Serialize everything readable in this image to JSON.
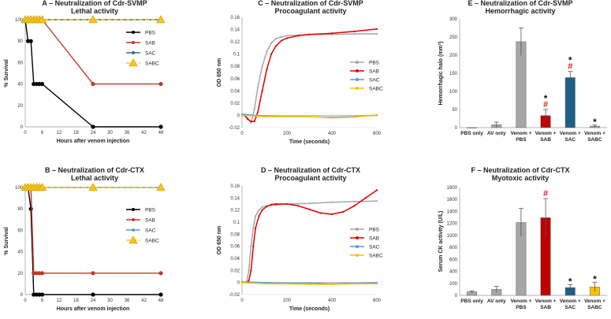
{
  "colors": {
    "PBS_a": "#000000",
    "SAB_a": "#c0392b",
    "SAC_a": "#2d6e8a",
    "SABC_a": "#f5c518",
    "PBS_c": "#a6a6a6",
    "SAB_c": "#e00000",
    "SAC_c": "#5b9bd5",
    "SABC_c": "#ffc000",
    "bar_grey": "#a6a6a6",
    "bar_red": "#c00000",
    "bar_blue": "#1f5f87",
    "bar_yellow": "#ffc000",
    "sig": "#e02020"
  },
  "chart_data": [
    {
      "id": "A",
      "type": "line",
      "title": "A – Neutralization of Cdr-SVMP",
      "subtitle": "Lethal activity",
      "xlabel": "Hours after venom injection",
      "ylabel": "% Survival",
      "xlim": [
        0,
        48
      ],
      "ylim": [
        0,
        100
      ],
      "xticks": [
        0,
        6,
        12,
        18,
        24,
        30,
        36,
        42,
        48
      ],
      "xticklabels": [
        "0",
        "6",
        "12",
        "18",
        "24",
        "30",
        "36",
        "42",
        "48"
      ],
      "yticks": [
        0,
        20,
        40,
        60,
        80,
        100
      ],
      "yticklabels": [
        "0",
        "20",
        "40",
        "60",
        "80",
        "100"
      ],
      "series": [
        {
          "name": "PBS",
          "color": "PBS_a",
          "marker": "circle",
          "dash": false,
          "x": [
            0,
            1,
            2,
            3,
            4,
            5,
            6,
            24,
            48
          ],
          "y": [
            100,
            80,
            80,
            40,
            40,
            40,
            40,
            0,
            0
          ]
        },
        {
          "name": "SAB",
          "color": "SAB_a",
          "marker": "circle",
          "dash": false,
          "x": [
            0,
            1,
            2,
            3,
            4,
            5,
            6,
            24,
            48
          ],
          "y": [
            100,
            100,
            100,
            100,
            100,
            100,
            100,
            40,
            40
          ]
        },
        {
          "name": "SAC",
          "color": "SAC_a",
          "marker": "circle",
          "dash": false,
          "x": [
            0,
            1,
            2,
            3,
            4,
            5,
            6,
            24,
            48
          ],
          "y": [
            100,
            100,
            100,
            100,
            100,
            100,
            100,
            100,
            100
          ]
        },
        {
          "name": "SABC",
          "color": "SABC_a",
          "marker": "triangle",
          "dash": true,
          "x": [
            0,
            1,
            2,
            3,
            4,
            5,
            6,
            24,
            48
          ],
          "y": [
            100,
            100,
            100,
            100,
            100,
            100,
            100,
            100,
            100
          ]
        }
      ]
    },
    {
      "id": "B",
      "type": "line",
      "title": "B – Neutralization of Cdr-CTX",
      "subtitle": "Lethal activity",
      "xlabel": "Hours after venom injection",
      "ylabel": "% Survival",
      "xlim": [
        0,
        48
      ],
      "ylim": [
        0,
        100
      ],
      "xticks": [
        0,
        6,
        12,
        18,
        24,
        30,
        36,
        42,
        48
      ],
      "xticklabels": [
        "0",
        "6",
        "12",
        "18",
        "24",
        "30",
        "36",
        "42",
        "48"
      ],
      "yticks": [
        0,
        20,
        40,
        60,
        80,
        100
      ],
      "yticklabels": [
        "0",
        "20",
        "40",
        "60",
        "80",
        "100"
      ],
      "series": [
        {
          "name": "PBS",
          "color": "PBS_a",
          "marker": "circle",
          "dash": false,
          "x": [
            0,
            1,
            2,
            3,
            4,
            5,
            6,
            24,
            48
          ],
          "y": [
            100,
            100,
            80,
            0,
            0,
            0,
            0,
            0,
            0
          ]
        },
        {
          "name": "SAB",
          "color": "SAB_a",
          "marker": "circle",
          "dash": false,
          "x": [
            0,
            1,
            2,
            3,
            4,
            5,
            6,
            24,
            48
          ],
          "y": [
            100,
            100,
            100,
            20,
            20,
            20,
            20,
            20,
            20
          ]
        },
        {
          "name": "SAC",
          "color": "SAC_c",
          "marker": "circle",
          "dash": false,
          "x": [
            0,
            1,
            2,
            3,
            4,
            5,
            6,
            24,
            48
          ],
          "y": [
            100,
            100,
            100,
            100,
            100,
            100,
            100,
            100,
            100
          ]
        },
        {
          "name": "SABC",
          "color": "SABC_a",
          "marker": "triangle",
          "dash": true,
          "x": [
            0,
            1,
            2,
            3,
            4,
            5,
            6,
            24,
            48
          ],
          "y": [
            100,
            100,
            100,
            100,
            100,
            100,
            100,
            100,
            100
          ]
        }
      ]
    },
    {
      "id": "C",
      "type": "line",
      "title": "C – Neutralization of Cdr-SVMP",
      "subtitle": "Procoagulant activity",
      "xlabel": "Time (seconds)",
      "ylabel": "OD 650 nm",
      "xlim": [
        0,
        600
      ],
      "ylim": [
        -0.02,
        0.16
      ],
      "xticks": [
        0,
        200,
        400,
        600
      ],
      "xticklabels": [
        "0",
        "200",
        "400",
        "600"
      ],
      "yticks": [
        -0.02,
        0,
        0.02,
        0.04,
        0.06,
        0.08,
        0.1,
        0.12,
        0.14,
        0.16
      ],
      "yticklabels": [
        "-0.02",
        "0",
        "0.02",
        "0.04",
        "0.06",
        "0.08",
        "0.1",
        "0.12",
        "0.14",
        "0.16"
      ],
      "series": [
        {
          "name": "PBS",
          "color": "PBS_c",
          "marker": "dot",
          "dash": false,
          "x": [
            0,
            10,
            25,
            40,
            55,
            70,
            90,
            110,
            130,
            150,
            175,
            200,
            250,
            300,
            400,
            500,
            600
          ],
          "y": [
            0,
            0.001,
            -0.005,
            -0.012,
            0.01,
            0.045,
            0.08,
            0.104,
            0.118,
            0.125,
            0.128,
            0.13,
            0.131,
            0.132,
            0.132,
            0.133,
            0.133
          ]
        },
        {
          "name": "SAB",
          "color": "SAB_c",
          "marker": "dot",
          "dash": false,
          "x": [
            0,
            10,
            25,
            40,
            55,
            70,
            90,
            110,
            130,
            150,
            175,
            200,
            250,
            300,
            400,
            500,
            600
          ],
          "y": [
            0,
            0,
            -0.006,
            -0.01,
            -0.01,
            0.005,
            0.04,
            0.075,
            0.1,
            0.113,
            0.122,
            0.126,
            0.13,
            0.132,
            0.134,
            0.137,
            0.141
          ]
        },
        {
          "name": "SAC",
          "color": "SAC_c",
          "marker": "dot",
          "dash": false,
          "x": [
            0,
            50,
            100,
            200,
            300,
            400,
            500,
            600
          ],
          "y": [
            0.002,
            0,
            -0.001,
            -0.002,
            -0.002,
            -0.003,
            -0.002,
            0
          ]
        },
        {
          "name": "SABC",
          "color": "SABC_c",
          "marker": "dot",
          "dash": false,
          "x": [
            0,
            50,
            100,
            200,
            300,
            400,
            500,
            600
          ],
          "y": [
            0,
            -0.001,
            -0.002,
            -0.002,
            -0.002,
            -0.004,
            -0.003,
            0.001
          ]
        }
      ]
    },
    {
      "id": "D",
      "type": "line",
      "title": "D – Neutralization of Cdr-CTX",
      "subtitle": "Procoagulant activity",
      "xlabel": "Time (seconds)",
      "ylabel": "OD 650 nm",
      "xlim": [
        0,
        600
      ],
      "ylim": [
        -0.02,
        0.16
      ],
      "xticks": [
        0,
        200,
        400,
        600
      ],
      "xticklabels": [
        "0",
        "200",
        "400",
        "600"
      ],
      "yticks": [
        -0.02,
        0,
        0.02,
        0.04,
        0.06,
        0.08,
        0.1,
        0.12,
        0.14,
        0.16
      ],
      "yticklabels": [
        "-0.02",
        "0",
        "0.02",
        "0.04",
        "0.06",
        "0.08",
        "0.1",
        "0.12",
        "0.14",
        "0.16"
      ],
      "series": [
        {
          "name": "PBS",
          "color": "PBS_c",
          "marker": "dot",
          "dash": false,
          "x": [
            0,
            20,
            30,
            40,
            50,
            60,
            75,
            90,
            110,
            130,
            150,
            200,
            300,
            400,
            500,
            600
          ],
          "y": [
            0,
            0,
            0.02,
            0.06,
            0.09,
            0.11,
            0.12,
            0.125,
            0.127,
            0.128,
            0.128,
            0.13,
            0.131,
            0.133,
            0.134,
            0.135
          ]
        },
        {
          "name": "SAB",
          "color": "SAB_c",
          "marker": "dot",
          "dash": false,
          "x": [
            0,
            20,
            30,
            40,
            50,
            60,
            75,
            90,
            110,
            130,
            150,
            200,
            250,
            300,
            350,
            400,
            450,
            500,
            550,
            600
          ],
          "y": [
            0,
            0,
            0.003,
            0.02,
            0.06,
            0.09,
            0.11,
            0.12,
            0.126,
            0.129,
            0.13,
            0.13,
            0.127,
            0.121,
            0.115,
            0.113,
            0.117,
            0.127,
            0.14,
            0.153
          ]
        },
        {
          "name": "SAC",
          "color": "SAC_c",
          "marker": "dot",
          "dash": false,
          "x": [
            0,
            100,
            200,
            300,
            400,
            500,
            600
          ],
          "y": [
            0.001,
            0,
            -0.001,
            -0.001,
            -0.002,
            -0.001,
            0
          ]
        },
        {
          "name": "SABC",
          "color": "SABC_c",
          "marker": "dot",
          "dash": false,
          "x": [
            0,
            100,
            200,
            300,
            400,
            500,
            600
          ],
          "y": [
            0,
            -0.002,
            -0.002,
            -0.003,
            -0.003,
            -0.002,
            -0.002
          ]
        }
      ]
    },
    {
      "id": "E",
      "type": "bar",
      "title": "E – Neutralization of Cdr-SVMP",
      "subtitle": "Hemorrhagic activity",
      "xlabel": "",
      "ylabel": "Hemorrhagic halo (mm²)",
      "ylim": [
        0,
        300
      ],
      "yticks": [
        0,
        50,
        100,
        150,
        200,
        250,
        300
      ],
      "yticklabels": [
        "0",
        "50",
        "100",
        "150",
        "200",
        "250",
        "300"
      ],
      "categories": [
        [
          "PBS only"
        ],
        [
          "AV only"
        ],
        [
          "Venom +",
          "PBS"
        ],
        [
          "Venom +",
          "SAB"
        ],
        [
          "Venom +",
          "SAC"
        ],
        [
          "Venom +",
          "SABC"
        ]
      ],
      "values": [
        0,
        8,
        237,
        33,
        138,
        4
      ],
      "errors": [
        0,
        7,
        38,
        17,
        17,
        3
      ],
      "bar_colors": [
        "bar_grey",
        "bar_grey",
        "bar_grey",
        "bar_red",
        "bar_blue",
        "bar_grey"
      ],
      "annotations": [
        [],
        [],
        [],
        [
          "#",
          "*"
        ],
        [
          "#",
          "*"
        ],
        [
          "*"
        ]
      ]
    },
    {
      "id": "F",
      "type": "bar",
      "title": "F – Neutralization of Cdr-CTX",
      "subtitle": "Myotoxic activity",
      "xlabel": "",
      "ylabel": "Serum CK activity (U/L)",
      "ylim": [
        0,
        1800
      ],
      "yticks": [
        0,
        200,
        400,
        600,
        800,
        1000,
        1200,
        1400,
        1600,
        1800
      ],
      "yticklabels": [
        "0",
        "200",
        "400",
        "600",
        "800",
        "1000",
        "1200",
        "1400",
        "1600",
        "1800"
      ],
      "categories": [
        [
          "PBS only"
        ],
        [
          "AV only"
        ],
        [
          "Venom +",
          "PBS"
        ],
        [
          "Venom +",
          "SAB"
        ],
        [
          "Venom +",
          "SAC"
        ],
        [
          "Venom +",
          "SABC"
        ]
      ],
      "values": [
        60,
        100,
        1215,
        1295,
        130,
        140
      ],
      "errors": [
        15,
        50,
        235,
        320,
        50,
        80
      ],
      "bar_colors": [
        "bar_grey",
        "bar_grey",
        "bar_grey",
        "bar_red",
        "bar_blue",
        "bar_yellow"
      ],
      "annotations": [
        [],
        [],
        [],
        [
          "#"
        ],
        [
          "*"
        ],
        [
          "*"
        ]
      ]
    }
  ]
}
